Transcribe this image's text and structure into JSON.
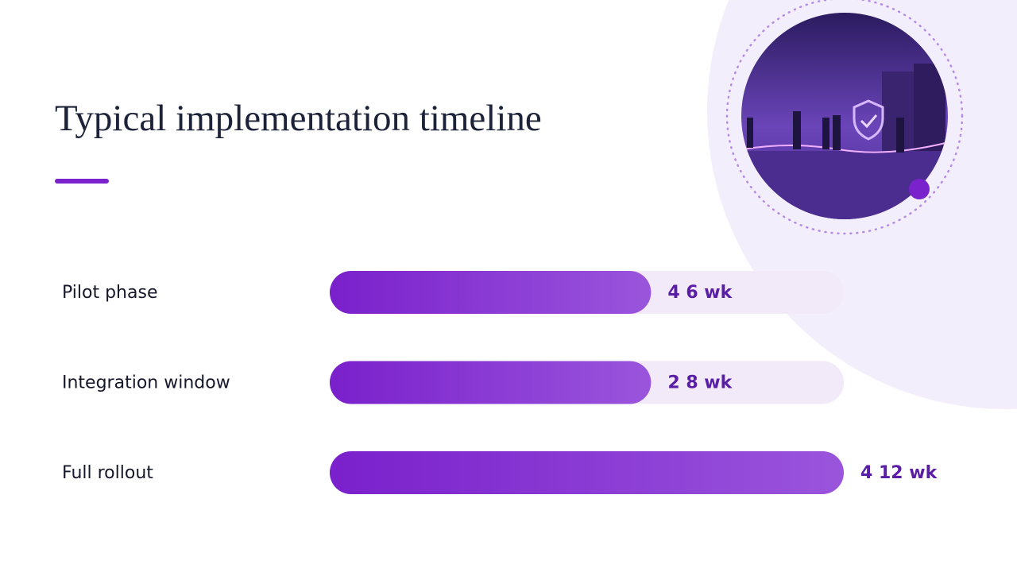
{
  "chart_data": {
    "type": "bar",
    "title": "Typical implementation timeline",
    "categories": [
      "Pilot phase",
      "Integration window",
      "Full rollout"
    ],
    "values": [
      62.5,
      62.5,
      100
    ],
    "durations": [
      "4 6 wk",
      "2 8 wk",
      "4 12 wk"
    ],
    "xlim": [
      0,
      100
    ],
    "color": "#7b24cc"
  }
}
